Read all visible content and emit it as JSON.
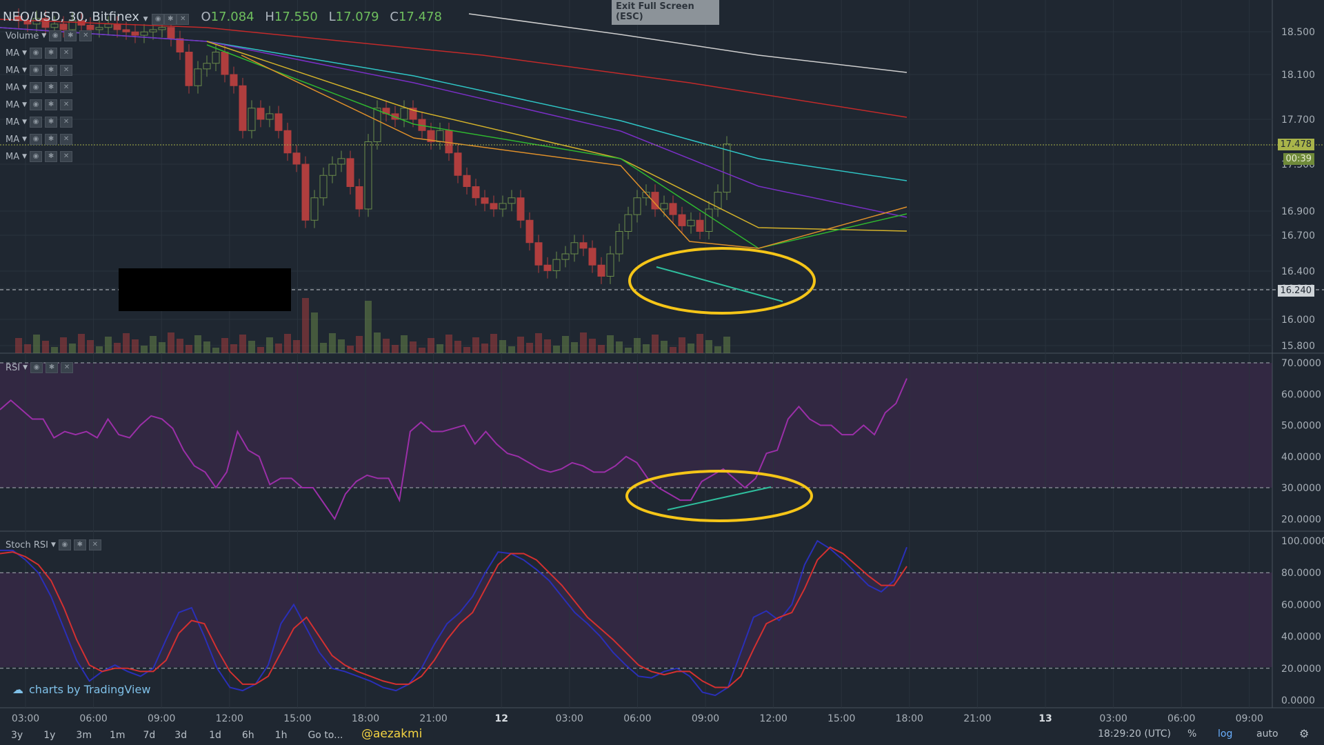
{
  "header": {
    "symbol": "NEO/USD, 30, Bitfinex",
    "o_label": "O",
    "o_value": "17.084",
    "h_label": "H",
    "h_value": "17.550",
    "l_label": "L",
    "l_value": "17.079",
    "c_label": "C",
    "c_value": "17.478"
  },
  "exit_fullscreen": "Exit Full Screen (ESC)",
  "indicators": {
    "volume": "Volume",
    "ma": [
      "MA",
      "MA",
      "MA",
      "MA",
      "MA",
      "MA",
      "MA"
    ],
    "rsi": "RSI",
    "stoch": "Stoch RSI"
  },
  "price_badges": {
    "last": "17.478",
    "countdown": "00:39",
    "level": "16.240"
  },
  "branding": {
    "text": "charts by TradingView",
    "handle": "@aezakmi"
  },
  "bottom": {
    "timeframes": [
      "3y",
      "1y",
      "3m",
      "1m",
      "7d",
      "3d",
      "1d",
      "6h",
      "1h"
    ],
    "goto": "Go to...",
    "clock": "18:29:20 (UTC)",
    "pct": "%",
    "log": "log",
    "auto": "auto"
  },
  "colors": {
    "bg": "#1f2731",
    "up": "#6b8c4a",
    "down": "#b03e3e",
    "rsi": "#9b2fa8",
    "stoch_k": "#2a2fb8",
    "stoch_d": "#d43030",
    "annotation": "#f5c518",
    "trend": "#2fbf9e"
  },
  "chart_data": [
    {
      "type": "candlestick",
      "title": "NEO/USD, 30, Bitfinex",
      "y_ticks": [
        "18.500",
        "18.100",
        "17.700",
        "17.300",
        "16.900",
        "16.700",
        "16.400",
        "16.200",
        "16.000",
        "15.800"
      ],
      "x_ticks": [
        "03:00",
        "06:00",
        "09:00",
        "12:00",
        "15:00",
        "18:00",
        "21:00",
        "12",
        "03:00",
        "06:00",
        "09:00",
        "12:00",
        "15:00",
        "18:00",
        "21:00",
        "13",
        "03:00",
        "06:00",
        "09:00"
      ],
      "overlays": [
        "MA",
        "MA",
        "MA",
        "MA",
        "MA",
        "MA",
        "MA",
        "Volume"
      ],
      "highlighted_level": 16.24,
      "last_price": 17.478
    },
    {
      "type": "line",
      "title": "RSI",
      "y_ticks": [
        "70.0000",
        "60.0000",
        "50.0000",
        "40.0000",
        "30.0000",
        "20.0000"
      ],
      "ylim": [
        17,
        73
      ],
      "band": [
        30,
        70
      ],
      "values": [
        55,
        58,
        55,
        52,
        52,
        46,
        48,
        47,
        48,
        46,
        52,
        47,
        46,
        50,
        53,
        52,
        49,
        42,
        37,
        35,
        30,
        35,
        48,
        42,
        40,
        31,
        33,
        33,
        30,
        30,
        25,
        20,
        28,
        32,
        34,
        33,
        33,
        26,
        48,
        51,
        48,
        48,
        49,
        50,
        44,
        48,
        44,
        41,
        40,
        38,
        36,
        35,
        36,
        38,
        37,
        35,
        35,
        37,
        40,
        38,
        33,
        30,
        28,
        26,
        26,
        32,
        34,
        36,
        33,
        30,
        33,
        41,
        42,
        52,
        56,
        52,
        50,
        50,
        47,
        47,
        50,
        47,
        54,
        57,
        65
      ]
    },
    {
      "type": "line",
      "title": "Stoch RSI",
      "y_ticks": [
        "100.0000",
        "80.0000",
        "60.0000",
        "40.0000",
        "20.0000",
        "0.0000"
      ],
      "ylim": [
        -2,
        102
      ],
      "band": [
        20,
        80
      ],
      "series": [
        {
          "values": [
            94,
            94,
            88,
            80,
            65,
            45,
            25,
            12,
            18,
            22,
            18,
            15,
            20,
            38,
            55,
            58,
            40,
            20,
            8,
            6,
            10,
            22,
            48,
            60,
            45,
            30,
            20,
            18,
            15,
            12,
            8,
            6,
            10,
            20,
            35,
            48,
            55,
            65,
            80,
            93,
            92,
            88,
            82,
            75,
            65,
            55,
            48,
            40,
            30,
            22,
            15,
            14,
            18,
            20,
            15,
            5,
            3,
            8,
            30,
            52,
            56,
            50,
            60,
            85,
            100,
            95,
            88,
            80,
            72,
            68,
            75,
            96
          ]
        },
        {
          "values": [
            92,
            93,
            90,
            85,
            75,
            58,
            38,
            22,
            18,
            20,
            20,
            18,
            18,
            25,
            42,
            50,
            48,
            32,
            18,
            10,
            10,
            15,
            30,
            45,
            52,
            40,
            28,
            22,
            18,
            15,
            12,
            10,
            10,
            15,
            25,
            38,
            48,
            55,
            70,
            85,
            92,
            92,
            88,
            80,
            72,
            62,
            52,
            45,
            38,
            30,
            22,
            18,
            16,
            18,
            18,
            12,
            8,
            8,
            15,
            32,
            48,
            52,
            55,
            70,
            88,
            96,
            92,
            85,
            78,
            72,
            72,
            84
          ]
        }
      ]
    }
  ]
}
